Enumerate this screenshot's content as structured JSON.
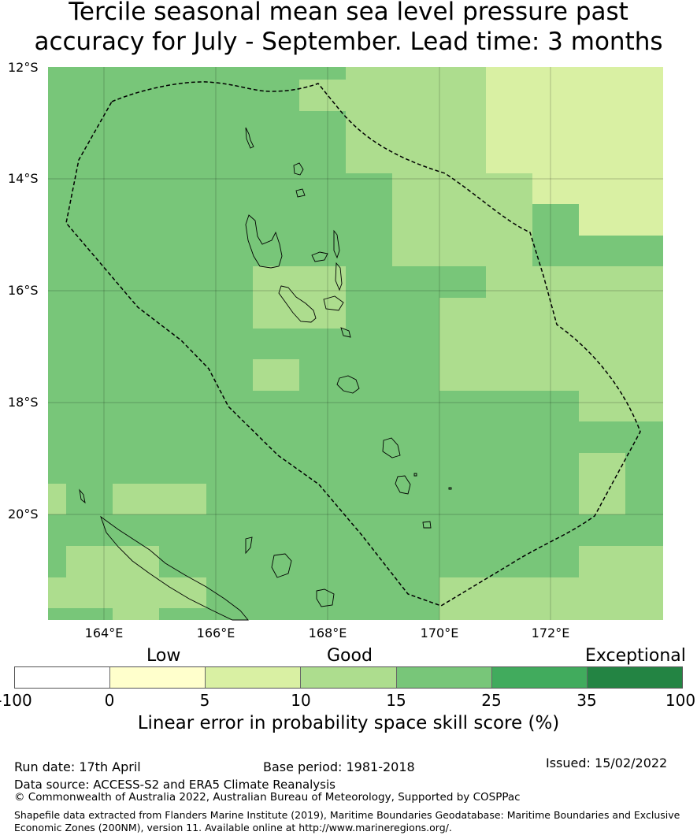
{
  "title": {
    "line1": "Tercile seasonal mean sea level pressure past",
    "line2": "accuracy for July - September. Lead time: 3 months"
  },
  "map": {
    "lat_labels": [
      "12°S",
      "14°S",
      "16°S",
      "18°S",
      "20°S"
    ],
    "lon_labels": [
      "164°E",
      "166°E",
      "168°E",
      "170°E",
      "172°E"
    ]
  },
  "legend": {
    "categories": {
      "low": "Low",
      "good": "Good",
      "exceptional": "Exceptional"
    },
    "bins": [
      {
        "range": "-100 to 0",
        "color": "#ffffff"
      },
      {
        "range": "0 to 5",
        "color": "#ffffcc"
      },
      {
        "range": "5 to 10",
        "color": "#d9f0a3"
      },
      {
        "range": "10 to 15",
        "color": "#addd8e"
      },
      {
        "range": "15 to 25",
        "color": "#78c679"
      },
      {
        "range": "25 to 35",
        "color": "#41ab5d"
      },
      {
        "range": "35 to 100",
        "color": "#238443"
      }
    ],
    "ticks": [
      "-100",
      "0",
      "5",
      "10",
      "15",
      "25",
      "35",
      "100"
    ],
    "label": "Linear error in probability space skill score (%)"
  },
  "footer": {
    "run_date": "Run date: 17th April",
    "base_period": "Base period: 1981-2018",
    "issued": "Issued: 15/02/2022",
    "data_source": "Data source: ACCESS-S2 and ERA5 Climate Reanalysis",
    "copyright": "© Commonwealth of Australia 2022, Australian Bureau of Meteorology, Supported by COSPPac",
    "shapefile": "Shapefile data extracted from Flanders Marine Institute (2019), Maritime Boundaries Geodatabase: Maritime Boundaries and Exclusive Economic Zones (200NM), version 11. Available online at http://www.marineregions.org/."
  },
  "colors": {
    "good_dark": "#78c679",
    "good_light": "#addd8e",
    "low_light": "#d9f0a3"
  }
}
